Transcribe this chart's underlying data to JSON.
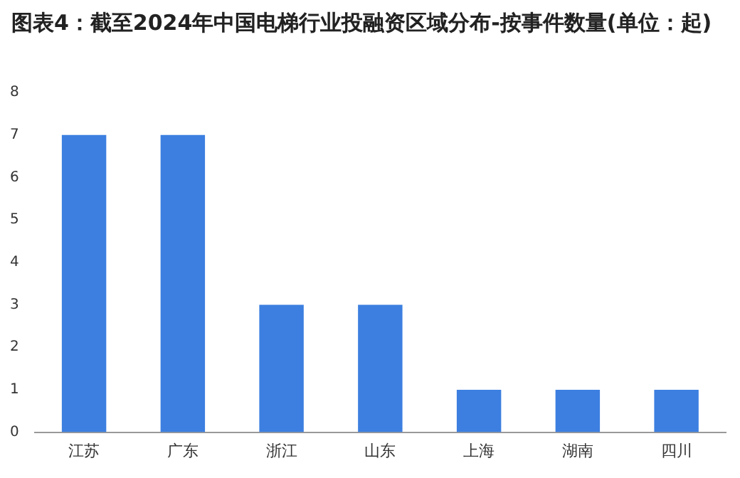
{
  "chart_data": {
    "type": "bar",
    "title": "图表4：截至2024年中国电梯行业投融资区域分布-按事件数量(单位：起)",
    "categories": [
      "江苏",
      "广东",
      "浙江",
      "山东",
      "上海",
      "湖南",
      "四川"
    ],
    "values": [
      7,
      7,
      3,
      3,
      1,
      1,
      1
    ],
    "color": "#3c7fe0",
    "ylim": [
      0,
      8
    ],
    "yticks": [
      0,
      1,
      2,
      3,
      4,
      5,
      6,
      7,
      8
    ],
    "grid": false,
    "legend": false
  }
}
